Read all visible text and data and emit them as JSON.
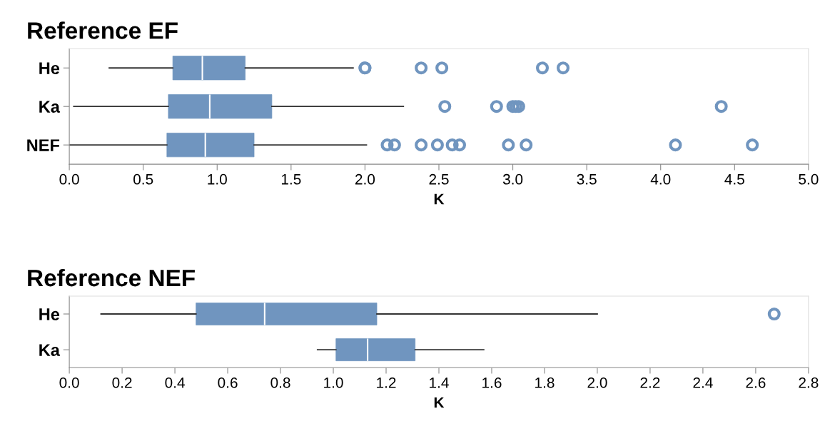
{
  "chart_data": [
    {
      "type": "box",
      "title": "Reference EF",
      "xlabel": "K",
      "orientation": "horizontal",
      "categories": [
        "He",
        "Ka",
        "NEF"
      ],
      "xlim": [
        0,
        5
      ],
      "xticks": [
        {
          "value": 0,
          "label": "0.0"
        },
        {
          "value": 0.5,
          "label": "0.5"
        },
        {
          "value": 1,
          "label": "1.0"
        },
        {
          "value": 1.5,
          "label": "1.5"
        },
        {
          "value": 2,
          "label": "2.0"
        },
        {
          "value": 2.5,
          "label": "2.5"
        },
        {
          "value": 3,
          "label": "3.0"
        },
        {
          "value": 3.5,
          "label": "3.5"
        },
        {
          "value": 4,
          "label": "4.0"
        },
        {
          "value": 4.5,
          "label": "4.5"
        },
        {
          "value": 5,
          "label": "5.0"
        }
      ],
      "grid": false,
      "series": [
        {
          "color": "#7095bf",
          "boxes": [
            {
              "low": 0.27,
              "q1": 0.7,
              "median": 0.9,
              "q3": 1.19,
              "high": 1.92,
              "outliers": [
                2.0,
                2.0,
                2.38,
                2.52,
                3.2,
                3.34
              ]
            },
            {
              "low": 0.03,
              "q1": 0.67,
              "median": 0.95,
              "q3": 1.37,
              "high": 2.26,
              "outliers": [
                2.54,
                2.89,
                3.0,
                3.02,
                3.04,
                4.41
              ]
            },
            {
              "low": 0.0,
              "q1": 0.66,
              "median": 0.92,
              "q3": 1.25,
              "high": 2.01,
              "outliers": [
                2.15,
                2.2,
                2.38,
                2.49,
                2.59,
                2.64,
                2.97,
                3.09,
                4.1,
                4.62
              ]
            }
          ]
        }
      ]
    },
    {
      "type": "box",
      "title": "Reference NEF",
      "xlabel": "K",
      "orientation": "horizontal",
      "categories": [
        "He",
        "Ka"
      ],
      "xlim": [
        0,
        2.8
      ],
      "xticks": [
        {
          "value": 0,
          "label": "0.0"
        },
        {
          "value": 0.2,
          "label": "0.2"
        },
        {
          "value": 0.4,
          "label": "0.4"
        },
        {
          "value": 0.6,
          "label": "0.6"
        },
        {
          "value": 0.8,
          "label": "0.8"
        },
        {
          "value": 1.0,
          "label": "1.0"
        },
        {
          "value": 1.2,
          "label": "1.2"
        },
        {
          "value": 1.4,
          "label": "1.4"
        },
        {
          "value": 1.6,
          "label": "1.6"
        },
        {
          "value": 1.8,
          "label": "1.8"
        },
        {
          "value": 2.0,
          "label": "2.0"
        },
        {
          "value": 2.2,
          "label": "2.2"
        },
        {
          "value": 2.4,
          "label": "2.4"
        },
        {
          "value": 2.6,
          "label": "2.6"
        },
        {
          "value": 2.8,
          "label": "2.8"
        }
      ],
      "grid": false,
      "series": [
        {
          "color": "#7095bf",
          "boxes": [
            {
              "low": 0.12,
              "q1": 0.48,
              "median": 0.74,
              "q3": 1.165,
              "high": 2.0,
              "outliers": [
                2.67
              ]
            },
            {
              "low": 0.94,
              "q1": 1.01,
              "median": 1.13,
              "q3": 1.31,
              "high": 1.57
            }
          ]
        }
      ]
    }
  ]
}
